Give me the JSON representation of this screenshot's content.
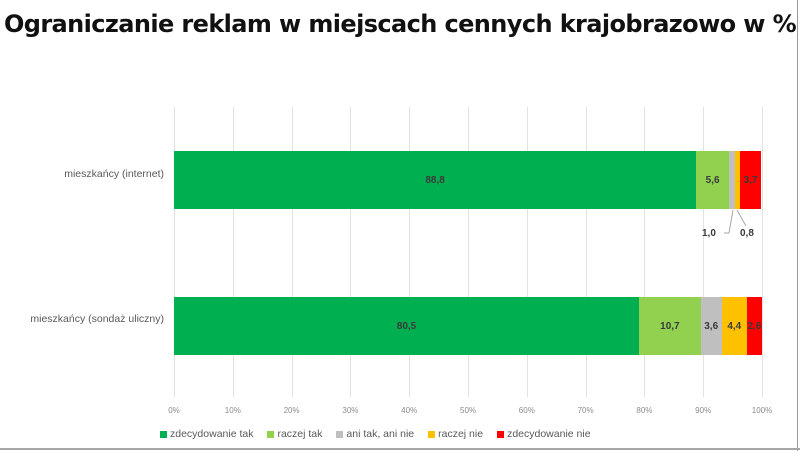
{
  "title": "Ograniczanie reklam w miejscach cennych krajobrazowo w %",
  "chart_data": {
    "type": "bar",
    "orientation": "horizontal",
    "stacked": "100%",
    "title": "Ograniczanie reklam w miejscach cennych krajobrazowo w %",
    "xlabel": "",
    "ylabel": "",
    "xlim": [
      0,
      100
    ],
    "x_ticks": [
      "0%",
      "10%",
      "20%",
      "30%",
      "40%",
      "50%",
      "60%",
      "70%",
      "80%",
      "90%",
      "100%"
    ],
    "grid": true,
    "legend_position": "bottom",
    "categories": [
      "mieszkańcy (internet)",
      "mieszkańcy (sondaż uliczny)"
    ],
    "series": [
      {
        "name": "zdecydowanie tak",
        "color": "#00b050",
        "values": [
          88.8,
          80.5
        ],
        "labels": [
          "88,8",
          "80,5"
        ]
      },
      {
        "name": "raczej tak",
        "color": "#92d050",
        "values": [
          5.6,
          10.7
        ],
        "labels": [
          "5,6",
          "10,7"
        ]
      },
      {
        "name": "ani tak, ani nie",
        "color": "#bfbfbf",
        "values": [
          1.0,
          3.6
        ],
        "labels": [
          "1,0",
          "3,6"
        ]
      },
      {
        "name": "raczej nie",
        "color": "#ffc000",
        "values": [
          0.8,
          4.4
        ],
        "labels": [
          "0,8",
          "4,4"
        ]
      },
      {
        "name": "zdecydowanie nie",
        "color": "#ff0000",
        "values": [
          3.7,
          2.6
        ],
        "labels": [
          "3,7",
          "2,6"
        ]
      }
    ]
  }
}
